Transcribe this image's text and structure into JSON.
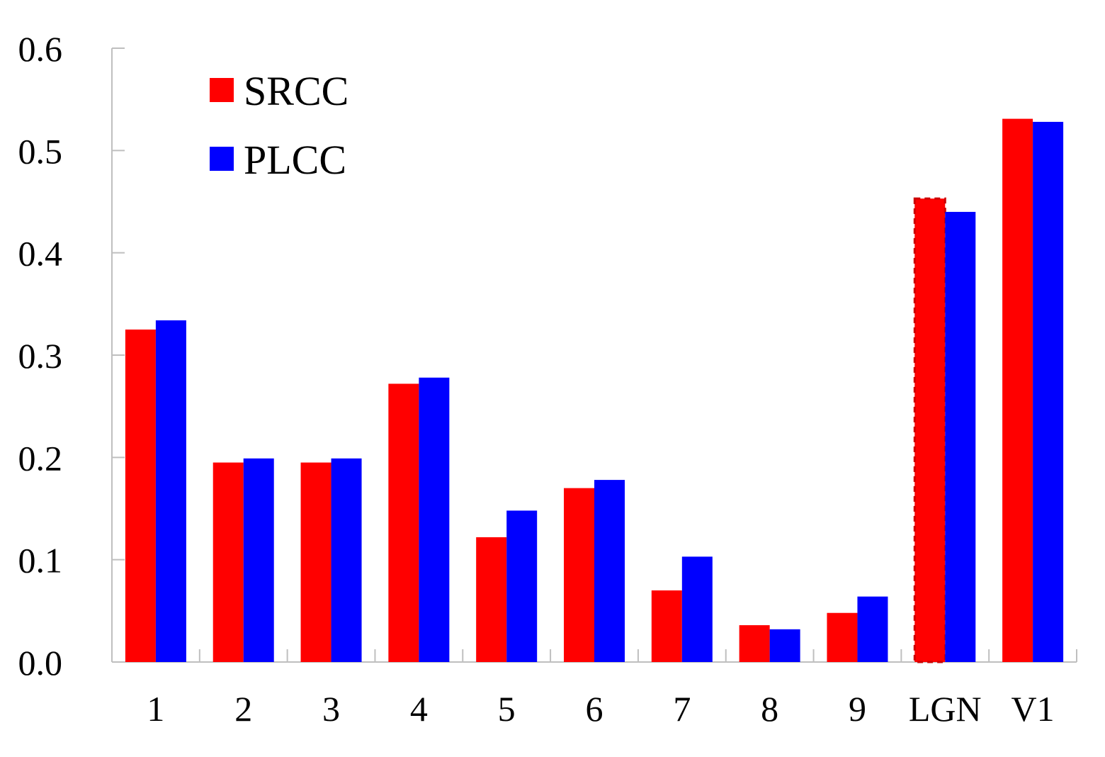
{
  "chart_data": {
    "type": "bar",
    "title": "",
    "xlabel": "",
    "ylabel": "",
    "categories": [
      "1",
      "2",
      "3",
      "4",
      "5",
      "6",
      "7",
      "8",
      "9",
      "LGN",
      "V1"
    ],
    "series": [
      {
        "name": "SRCC",
        "color": "#ff0000",
        "values": [
          0.325,
          0.195,
          0.195,
          0.272,
          0.122,
          0.17,
          0.07,
          0.036,
          0.048,
          0.453,
          0.531
        ]
      },
      {
        "name": "PLCC",
        "color": "#0000ff",
        "values": [
          0.334,
          0.199,
          0.199,
          0.278,
          0.148,
          0.178,
          0.103,
          0.032,
          0.064,
          0.44,
          0.528
        ]
      }
    ],
    "ylim": [
      0,
      0.6
    ],
    "yticks": [
      "0.0",
      "0.1",
      "0.2",
      "0.3",
      "0.4",
      "0.5",
      "0.6"
    ],
    "grid": false,
    "legend_position": "top-left",
    "highlighted_bar": {
      "category": "LGN",
      "series": "SRCC",
      "style": "dashed-outline"
    }
  }
}
